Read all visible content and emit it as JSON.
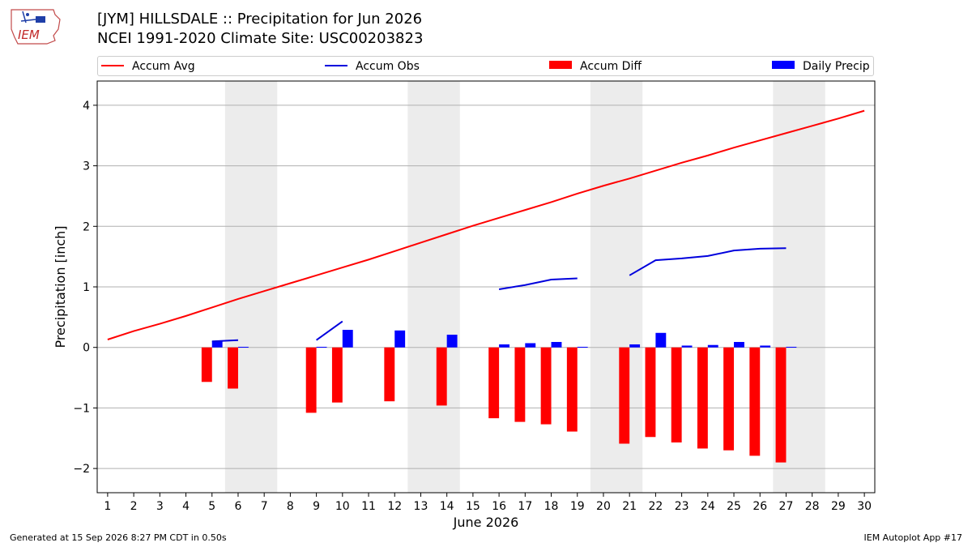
{
  "header": {
    "title_line1": "[JYM] HILLSDALE :: Precipitation for Jun 2026",
    "title_line2": "NCEI 1991-2020 Climate Site: USC00203823",
    "logo_text": "IEM"
  },
  "footer": {
    "generated": "Generated at 15 Sep 2026 8:27 PM CDT in 0.50s",
    "app": "IEM Autoplot App #17"
  },
  "colors": {
    "avg": "#ff0000",
    "obs": "#0000dd",
    "diff": "#ff0000",
    "daily": "#0000ff",
    "weekend_shade": "#ececec",
    "grid": "#b0b0b0"
  },
  "chart_data": {
    "type": "bar",
    "xlabel": "June 2026",
    "ylabel": "Precipitation [inch]",
    "xlim": [
      0.6,
      30.4
    ],
    "ylim": [
      -2.4,
      4.4
    ],
    "yticks": [
      -2,
      -1,
      0,
      1,
      2,
      3,
      4
    ],
    "ytick_labels": [
      "−2",
      "−1",
      "0",
      "1",
      "2",
      "3",
      "4"
    ],
    "xticks": [
      1,
      2,
      3,
      4,
      5,
      6,
      7,
      8,
      9,
      10,
      11,
      12,
      13,
      14,
      15,
      16,
      17,
      18,
      19,
      20,
      21,
      22,
      23,
      24,
      25,
      26,
      27,
      28,
      29,
      30
    ],
    "grid": "horizontal",
    "shaded_days": [
      6,
      7,
      13,
      14,
      20,
      21,
      27,
      28
    ],
    "legend": [
      {
        "label": "Accum Avg",
        "kind": "line",
        "color": "#ff0000"
      },
      {
        "label": "Accum Obs",
        "kind": "line",
        "color": "#0000dd"
      },
      {
        "label": "Accum Diff",
        "kind": "bar",
        "color": "#ff0000"
      },
      {
        "label": "Daily Precip",
        "kind": "bar",
        "color": "#0000ff"
      }
    ],
    "accum_avg": {
      "x": [
        1,
        2,
        3,
        4,
        5,
        6,
        7,
        8,
        9,
        10,
        11,
        12,
        13,
        14,
        15,
        16,
        17,
        18,
        19,
        20,
        21,
        22,
        23,
        24,
        25,
        26,
        27,
        28,
        29,
        30
      ],
      "values": [
        0.13,
        0.27,
        0.39,
        0.52,
        0.66,
        0.8,
        0.93,
        1.06,
        1.19,
        1.32,
        1.45,
        1.59,
        1.73,
        1.87,
        2.01,
        2.14,
        2.27,
        2.4,
        2.54,
        2.67,
        2.79,
        2.92,
        3.05,
        3.17,
        3.3,
        3.42,
        3.54,
        3.66,
        3.78,
        3.91
      ]
    },
    "accum_obs_segments": [
      {
        "x": [
          5,
          6
        ],
        "values": [
          0.1,
          0.12
        ]
      },
      {
        "x": [
          9,
          10
        ],
        "values": [
          0.12,
          0.43
        ]
      },
      {
        "x": [
          16,
          17,
          18,
          19
        ],
        "values": [
          0.96,
          1.03,
          1.12,
          1.14
        ]
      },
      {
        "x": [
          21,
          22,
          23,
          24,
          25,
          26,
          27
        ],
        "values": [
          1.19,
          1.44,
          1.47,
          1.51,
          1.6,
          1.63,
          1.64
        ]
      }
    ],
    "accum_diff": {
      "x": [
        5,
        6,
        9,
        10,
        12,
        14,
        16,
        17,
        18,
        19,
        21,
        22,
        23,
        24,
        25,
        26,
        27
      ],
      "values": [
        -0.57,
        -0.68,
        -1.08,
        -0.91,
        -0.89,
        -0.96,
        -1.17,
        -1.23,
        -1.27,
        -1.39,
        -1.59,
        -1.48,
        -1.57,
        -1.67,
        -1.7,
        -1.79,
        -1.9
      ]
    },
    "daily_precip": {
      "x": [
        5,
        6,
        9,
        10,
        12,
        14,
        16,
        17,
        18,
        19,
        21,
        22,
        23,
        24,
        25,
        26,
        27
      ],
      "values": [
        0.1,
        0.01,
        0.01,
        0.29,
        0.28,
        0.21,
        0.05,
        0.07,
        0.09,
        0.01,
        0.05,
        0.24,
        0.03,
        0.04,
        0.09,
        0.03,
        0.01
      ]
    }
  }
}
